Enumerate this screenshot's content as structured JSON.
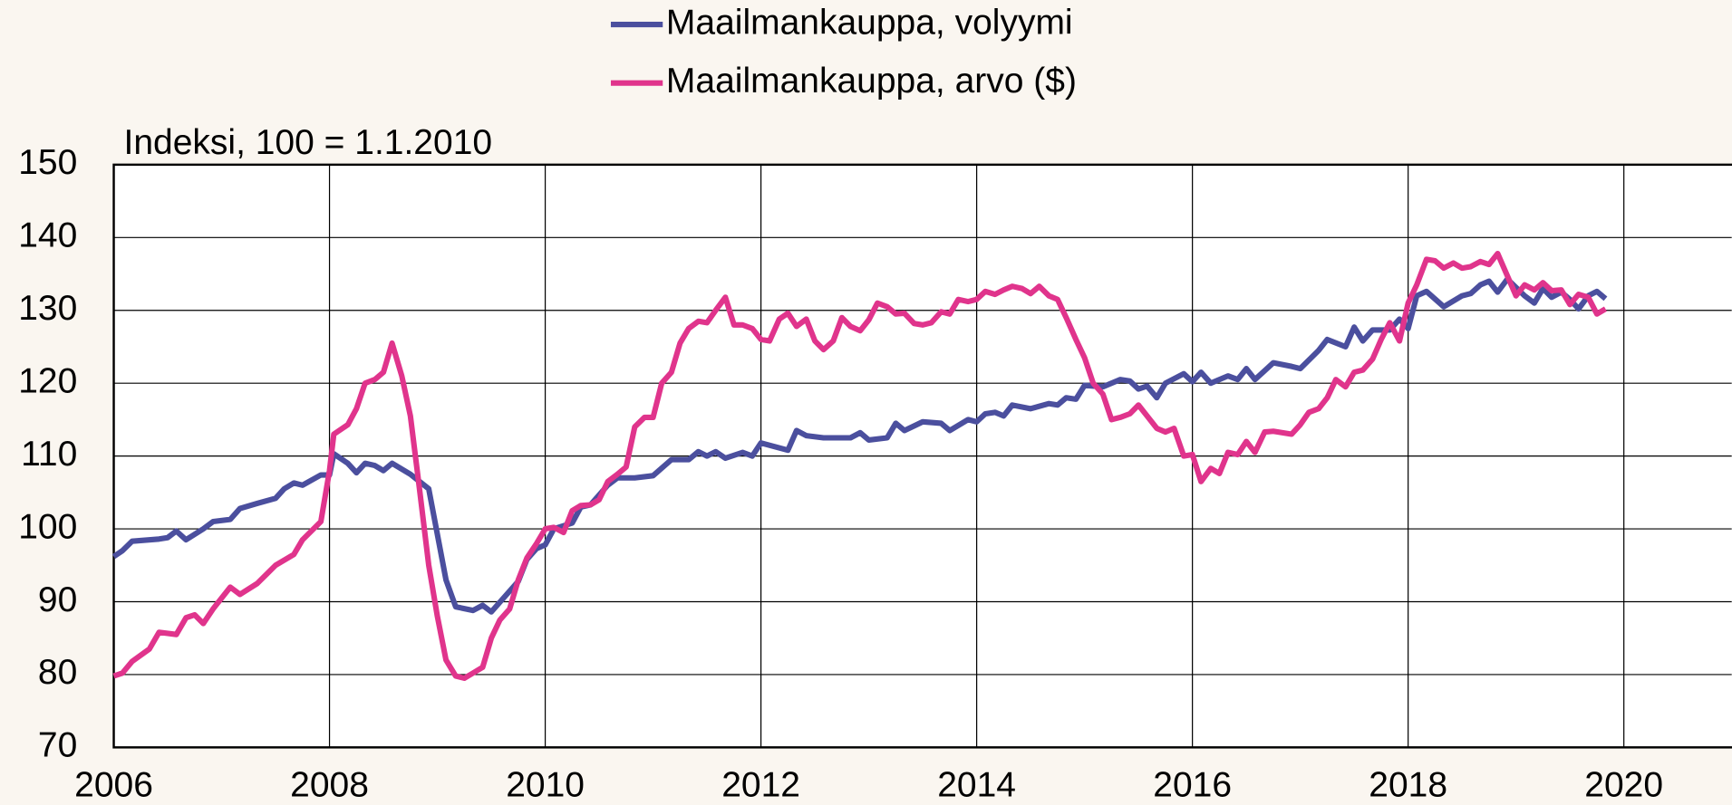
{
  "chart_data": {
    "type": "line",
    "legend": "top",
    "y_label": "Indeksi, 100 = 1.1.2010",
    "xlim": [
      2006,
      2021
    ],
    "xticks": [
      2006,
      2008,
      2010,
      2012,
      2014,
      2016,
      2018,
      2020
    ],
    "ylim": [
      70,
      150
    ],
    "yticks": [
      70,
      80,
      90,
      100,
      110,
      120,
      130,
      140,
      150
    ],
    "grid": true,
    "series": [
      {
        "name": "Maailmankauppa, volyymi",
        "color": "#4b4f9e",
        "x": [
          2006.0,
          2006.08,
          2006.17,
          2006.42,
          2006.5,
          2006.58,
          2006.67,
          2006.83,
          2006.92,
          2007.08,
          2007.17,
          2007.33,
          2007.5,
          2007.58,
          2007.67,
          2007.75,
          2007.92,
          2008.0,
          2008.04,
          2008.17,
          2008.25,
          2008.33,
          2008.42,
          2008.5,
          2008.58,
          2008.75,
          2008.92,
          2009.08,
          2009.17,
          2009.33,
          2009.42,
          2009.5,
          2009.75,
          2009.83,
          2009.92,
          2010.0,
          2010.08,
          2010.25,
          2010.33,
          2010.42,
          2010.58,
          2010.67,
          2010.83,
          2011.0,
          2011.17,
          2011.33,
          2011.42,
          2011.5,
          2011.58,
          2011.67,
          2011.83,
          2011.92,
          2012.0,
          2012.25,
          2012.33,
          2012.42,
          2012.58,
          2012.83,
          2012.92,
          2013.0,
          2013.17,
          2013.25,
          2013.33,
          2013.5,
          2013.67,
          2013.75,
          2013.92,
          2014.0,
          2014.08,
          2014.17,
          2014.25,
          2014.33,
          2014.5,
          2014.67,
          2014.75,
          2014.83,
          2014.92,
          2015.0,
          2015.17,
          2015.33,
          2015.42,
          2015.5,
          2015.58,
          2015.67,
          2015.75,
          2015.92,
          2016.0,
          2016.08,
          2016.17,
          2016.33,
          2016.42,
          2016.5,
          2016.58,
          2016.75,
          2016.92,
          2017.0,
          2017.17,
          2017.25,
          2017.42,
          2017.5,
          2017.58,
          2017.67,
          2017.83,
          2017.92,
          2018.0,
          2018.08,
          2018.17,
          2018.33,
          2018.5,
          2018.58,
          2018.67,
          2018.75,
          2018.83,
          2018.92,
          2019.08,
          2019.17,
          2019.25,
          2019.33,
          2019.42,
          2019.5,
          2019.58,
          2019.67,
          2019.75,
          2019.83
        ],
        "values": [
          96.2,
          97,
          98.3,
          98.6,
          98.8,
          99.7,
          98.5,
          100,
          101,
          101.3,
          102.8,
          103.5,
          104.2,
          105.5,
          106.3,
          106,
          107.4,
          107.4,
          110.3,
          109,
          107.7,
          109,
          108.7,
          108,
          109,
          107.5,
          105.5,
          93,
          89.3,
          88.8,
          89.5,
          88.6,
          92.8,
          95.8,
          97.3,
          97.8,
          100,
          100.8,
          103,
          103.3,
          106,
          107,
          107,
          107.3,
          109.5,
          109.5,
          110.6,
          110,
          110.6,
          109.7,
          110.5,
          110,
          111.8,
          110.8,
          113.5,
          112.8,
          112.5,
          112.5,
          113.2,
          112.2,
          112.5,
          114.5,
          113.5,
          114.7,
          114.5,
          113.5,
          115,
          114.7,
          115.8,
          116,
          115.5,
          117,
          116.5,
          117.2,
          117,
          118,
          117.8,
          119.7,
          119.5,
          120.5,
          120.3,
          119.2,
          119.6,
          118,
          120,
          121.3,
          120.2,
          121.5,
          120,
          121,
          120.5,
          122,
          120.5,
          122.8,
          122.3,
          122,
          124.5,
          126,
          125,
          127.7,
          125.8,
          127.3,
          127.3,
          128.8,
          127.5,
          132,
          132.6,
          130.5,
          132,
          132.3,
          133.5,
          134,
          132.5,
          134.3,
          132,
          131,
          133,
          131.8,
          132.5,
          131.5,
          130.2,
          132,
          132.6,
          131.6
        ]
      },
      {
        "name": "Maailmankauppa, arvo ($)",
        "color": "#e0348c",
        "x": [
          2006.0,
          2006.08,
          2006.17,
          2006.33,
          2006.42,
          2006.58,
          2006.67,
          2006.75,
          2006.83,
          2006.92,
          2007.08,
          2007.17,
          2007.33,
          2007.5,
          2007.67,
          2007.75,
          2007.92,
          2008.0,
          2008.04,
          2008.17,
          2008.25,
          2008.33,
          2008.42,
          2008.5,
          2008.58,
          2008.67,
          2008.75,
          2008.83,
          2008.92,
          2009.0,
          2009.08,
          2009.17,
          2009.25,
          2009.33,
          2009.42,
          2009.5,
          2009.58,
          2009.67,
          2009.75,
          2009.83,
          2009.92,
          2010.0,
          2010.08,
          2010.17,
          2010.25,
          2010.33,
          2010.42,
          2010.5,
          2010.58,
          2010.67,
          2010.75,
          2010.83,
          2010.92,
          2011.0,
          2011.08,
          2011.17,
          2011.25,
          2011.33,
          2011.42,
          2011.5,
          2011.58,
          2011.67,
          2011.75,
          2011.83,
          2011.92,
          2012.0,
          2012.08,
          2012.17,
          2012.25,
          2012.33,
          2012.42,
          2012.5,
          2012.58,
          2012.67,
          2012.75,
          2012.83,
          2012.92,
          2013.0,
          2013.08,
          2013.17,
          2013.25,
          2013.33,
          2013.42,
          2013.5,
          2013.58,
          2013.67,
          2013.75,
          2013.83,
          2013.92,
          2014.0,
          2014.08,
          2014.17,
          2014.25,
          2014.33,
          2014.42,
          2014.5,
          2014.58,
          2014.67,
          2014.75,
          2014.83,
          2014.92,
          2015.0,
          2015.08,
          2015.17,
          2015.25,
          2015.33,
          2015.42,
          2015.5,
          2015.58,
          2015.67,
          2015.75,
          2015.83,
          2015.92,
          2016.0,
          2016.08,
          2016.17,
          2016.25,
          2016.33,
          2016.42,
          2016.5,
          2016.58,
          2016.67,
          2016.75,
          2016.92,
          2017.0,
          2017.08,
          2017.17,
          2017.25,
          2017.33,
          2017.42,
          2017.5,
          2017.58,
          2017.67,
          2017.75,
          2017.83,
          2017.92,
          2018.0,
          2018.08,
          2018.17,
          2018.25,
          2018.33,
          2018.42,
          2018.5,
          2018.58,
          2018.67,
          2018.75,
          2018.83,
          2019.0,
          2019.08,
          2019.17,
          2019.25,
          2019.33,
          2019.42,
          2019.5,
          2019.58,
          2019.67,
          2019.75,
          2019.83
        ],
        "values": [
          79.8,
          80.2,
          81.8,
          83.5,
          85.8,
          85.5,
          87.8,
          88.2,
          87,
          89,
          92,
          91,
          92.5,
          95,
          96.5,
          98.5,
          101,
          108,
          113,
          114.3,
          116.5,
          120,
          120.5,
          121.5,
          125.5,
          121,
          115.5,
          106,
          95,
          88,
          82,
          79.8,
          79.5,
          80.2,
          81,
          85,
          87.5,
          89,
          93,
          96,
          98,
          100,
          100.2,
          99.5,
          102.5,
          103.2,
          103.3,
          104,
          106.5,
          107.5,
          108.5,
          114,
          115.3,
          115.3,
          120,
          121.5,
          125.5,
          127.5,
          128.5,
          128.3,
          130,
          131.8,
          128,
          128,
          127.5,
          126,
          125.8,
          128.8,
          129.6,
          127.8,
          128.8,
          125.8,
          124.6,
          125.8,
          129,
          127.8,
          127.2,
          128.7,
          131,
          130.5,
          129.5,
          129.6,
          128.2,
          128,
          128.3,
          129.8,
          129.5,
          131.5,
          131.2,
          131.5,
          132.6,
          132.2,
          132.8,
          133.3,
          133,
          132.3,
          133.3,
          132,
          131.5,
          129,
          126,
          123.5,
          120,
          118.5,
          115,
          115.3,
          115.8,
          117,
          115.5,
          113.8,
          113.3,
          113.8,
          110,
          110.2,
          106.5,
          108.3,
          107.6,
          110.5,
          110.2,
          112,
          110.5,
          113.3,
          113.4,
          113,
          114.3,
          116,
          116.5,
          118,
          120.5,
          119.5,
          121.5,
          121.8,
          123.3,
          126,
          128.3,
          125.8,
          131,
          133.5,
          137,
          136.8,
          135.8,
          136.5,
          135.8,
          136,
          136.7,
          136.3,
          137.8,
          132,
          133.5,
          132.8,
          133.8,
          132.7,
          132.8,
          130.8,
          132.2,
          131.8,
          129.5,
          130.2
        ]
      }
    ]
  }
}
